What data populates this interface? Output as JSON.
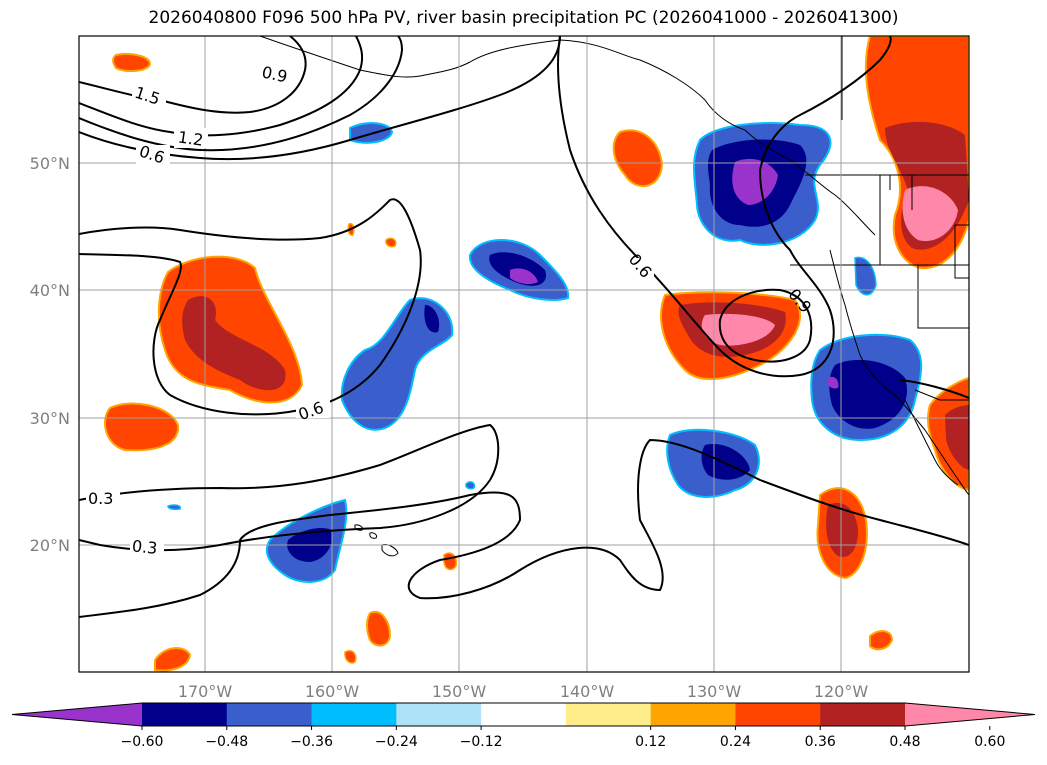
{
  "title": "2026040800 F096 500 hPa PV, river basin precipitation PC (2026041000 - 2026041300)",
  "lon_ticks": [
    "170°W",
    "160°W",
    "150°W",
    "140°W",
    "130°W",
    "120°W"
  ],
  "lat_ticks": [
    "50°N",
    "40°N",
    "30°N",
    "20°N"
  ],
  "contour_labels": [
    "0.9",
    "1.5",
    "1.2",
    "0.6",
    "0.6",
    "0.6",
    "0.9",
    "0.3",
    "0.3"
  ],
  "colorbar": {
    "ticks": [
      "−0.60",
      "−0.48",
      "−0.36",
      "−0.24",
      "−0.12",
      "0.12",
      "0.24",
      "0.36",
      "0.48",
      "0.60"
    ],
    "colors": [
      "#9933cc",
      "#00008b",
      "#3a5fcd",
      "#00bfff",
      "#aee2f7",
      "#ffffff",
      "#ffec8b",
      "#ffa500",
      "#ff4500",
      "#b22222",
      "#ff88aa"
    ]
  }
}
